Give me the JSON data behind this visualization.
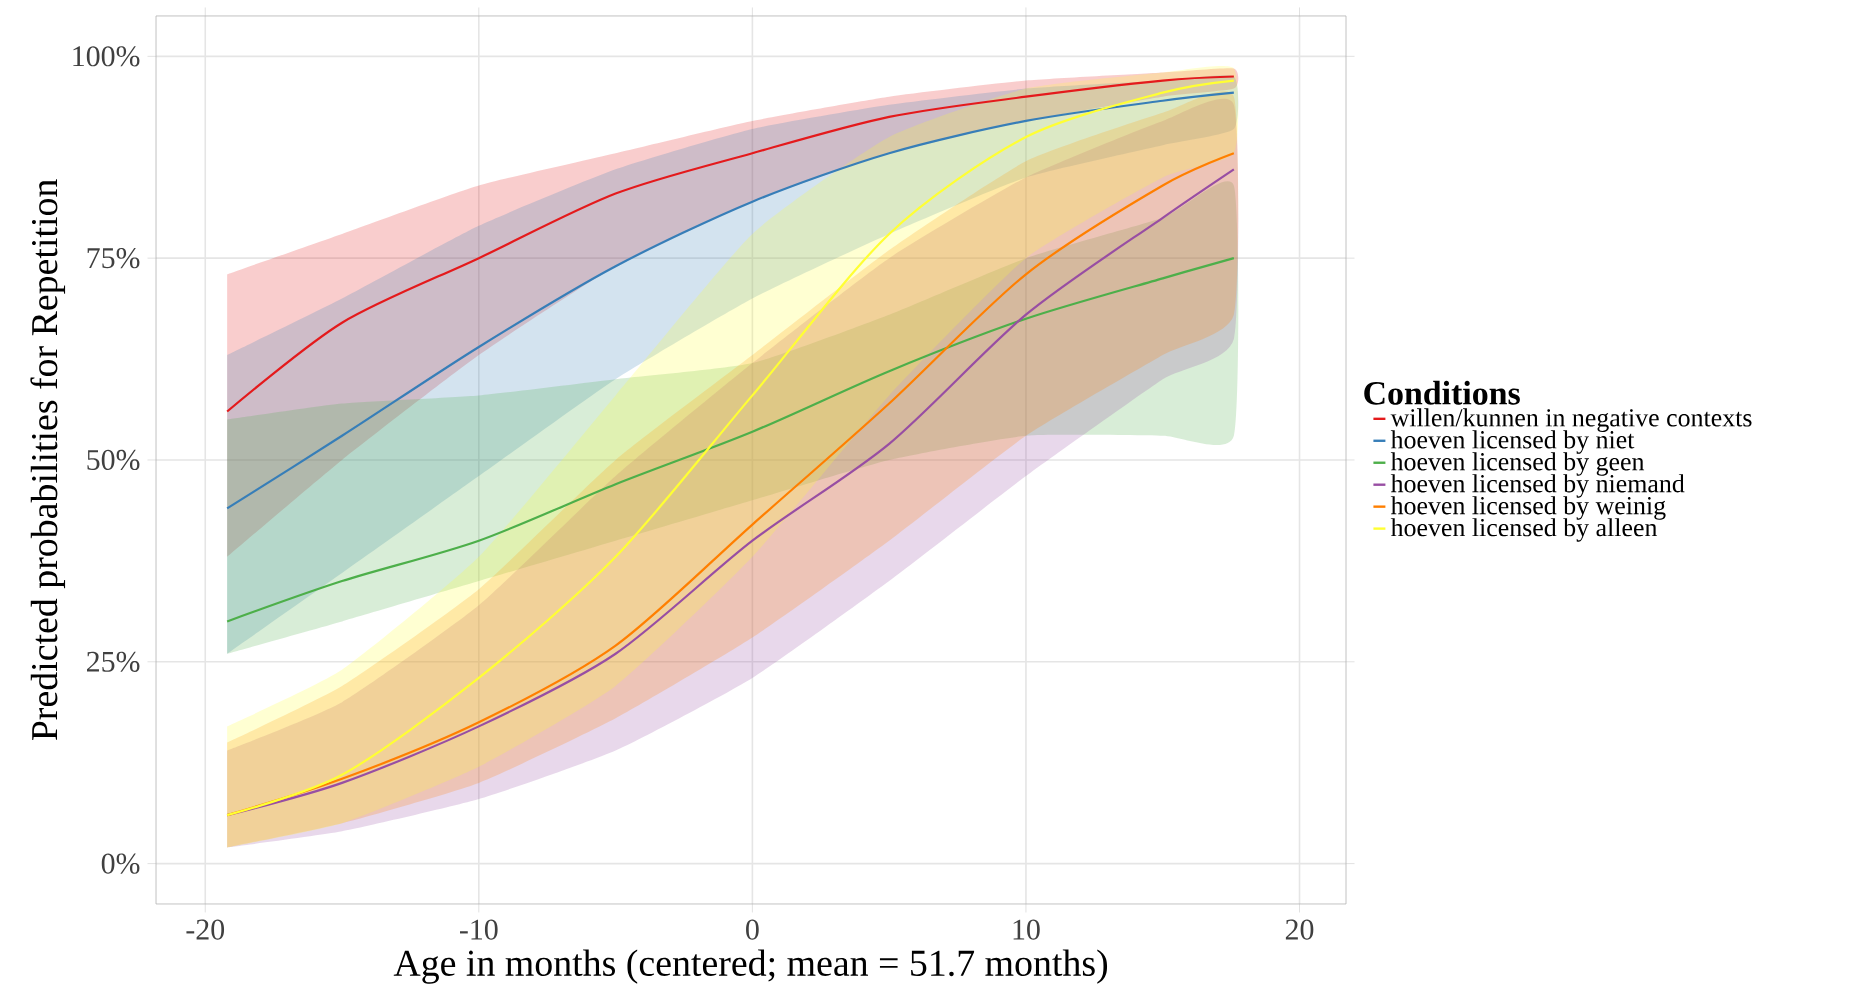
{
  "chart_data": {
    "type": "line",
    "xlabel": "Age in months (centered; mean = 51.7 months)",
    "ylabel": "Predicted probabilities for Repetition",
    "legend_title": "Conditions",
    "x": [
      -19.2,
      -15,
      -10,
      -5,
      0,
      5,
      10,
      15,
      17.6
    ],
    "series": [
      {
        "name": "willen/kunnen in negative contexts",
        "color": "#e41a1c",
        "values": [
          56,
          67,
          75,
          83,
          88,
          92.5,
          95,
          97,
          97.5
        ],
        "lower": [
          38,
          50,
          63,
          74,
          82,
          88,
          92,
          95,
          96
        ],
        "upper": [
          73,
          78,
          84,
          88,
          92,
          95,
          97,
          98,
          98.5
        ]
      },
      {
        "name": "hoeven licensed by niet",
        "color": "#377eb8",
        "values": [
          44,
          53,
          64,
          74,
          82,
          88,
          92,
          94.5,
          95.5
        ],
        "lower": [
          26,
          36,
          48,
          60,
          70,
          78,
          85,
          89,
          91
        ],
        "upper": [
          63,
          70,
          79,
          86,
          91,
          94,
          96,
          97,
          97.5
        ]
      },
      {
        "name": "hoeven licensed by geen",
        "color": "#4daf4a",
        "values": [
          30,
          35,
          40,
          47,
          53.5,
          61,
          67.5,
          72.5,
          75
        ],
        "lower": [
          26,
          30,
          35,
          40,
          45,
          50,
          53,
          53,
          53
        ],
        "upper": [
          55,
          57,
          58,
          60,
          62,
          68,
          75,
          80,
          84
        ]
      },
      {
        "name": "hoeven licensed by niemand",
        "color": "#984ea3",
        "values": [
          6,
          10,
          17,
          26,
          40,
          52,
          68,
          80,
          86
        ],
        "lower": [
          2,
          4,
          8,
          14,
          23,
          35,
          48,
          60,
          65
        ],
        "upper": [
          14,
          20,
          32,
          48,
          62,
          75,
          85,
          92,
          94
        ]
      },
      {
        "name": "hoeven licensed by weinig",
        "color": "#ff7f00",
        "values": [
          6,
          10.5,
          17.5,
          27,
          42,
          57,
          73,
          84,
          88
        ],
        "lower": [
          2,
          5,
          10,
          18,
          28,
          40,
          53,
          63,
          68
        ],
        "upper": [
          15,
          22,
          34,
          50,
          63,
          76,
          87,
          93,
          95
        ]
      },
      {
        "name": "hoeven licensed by alleen",
        "color": "#ffff33",
        "values": [
          6,
          11,
          23,
          38,
          58,
          78,
          90,
          95.5,
          97
        ],
        "lower": [
          2,
          5,
          12,
          22,
          38,
          58,
          75,
          85,
          88
        ],
        "upper": [
          17,
          24,
          38,
          58,
          78,
          90,
          96,
          98,
          98.5
        ]
      }
    ],
    "xlim": [
      -21.8,
      21.7
    ],
    "ylim": [
      -5,
      105
    ],
    "xticks": [
      -20,
      -10,
      0,
      10,
      20
    ],
    "yticks": [
      {
        "value": 0,
        "label": "0%"
      },
      {
        "value": 25,
        "label": "25%"
      },
      {
        "value": 50,
        "label": "50%"
      },
      {
        "value": 75,
        "label": "75%"
      },
      {
        "value": 100,
        "label": "100%"
      }
    ],
    "grid": true,
    "legend": "right",
    "line_style": "solid",
    "marker": "none"
  }
}
